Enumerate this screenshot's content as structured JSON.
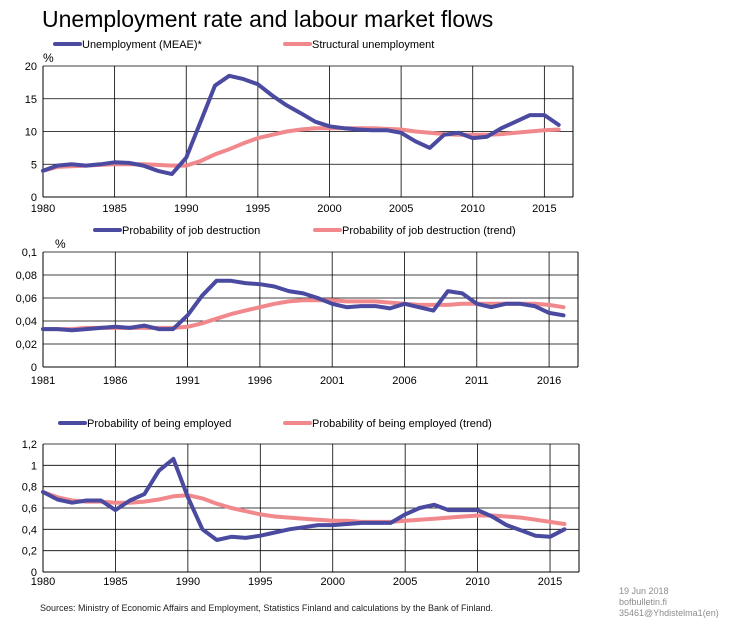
{
  "title": "Unemployment rate and labour market flows",
  "chart_data": [
    {
      "type": "line",
      "title": "",
      "ylabel": "%",
      "xlabel": "",
      "xlim": [
        1980,
        2017
      ],
      "ylim": [
        0,
        20
      ],
      "xticks": [
        "1980",
        "1985",
        "1990",
        "1995",
        "2000",
        "2005",
        "2010",
        "2015"
      ],
      "xtick_values": [
        1980,
        1985,
        1990,
        1995,
        2000,
        2005,
        2010,
        2015
      ],
      "yticks": [
        "0",
        "5",
        "10",
        "15",
        "20"
      ],
      "ytick_values": [
        0,
        5,
        10,
        15,
        20
      ],
      "grid": true,
      "legend_position": "top",
      "series": [
        {
          "name": "Unemployment (MEAE)*",
          "color": "#4a4aa0",
          "x": [
            1980,
            1981,
            1982,
            1983,
            1984,
            1985,
            1986,
            1987,
            1988,
            1989,
            1990,
            1991,
            1992,
            1993,
            1994,
            1995,
            1996,
            1997,
            1998,
            1999,
            2000,
            2001,
            2002,
            2003,
            2004,
            2005,
            2006,
            2007,
            2008,
            2009,
            2010,
            2011,
            2012,
            2013,
            2014,
            2015,
            2016
          ],
          "y": [
            4.0,
            4.8,
            5.0,
            4.8,
            5.0,
            5.3,
            5.2,
            4.8,
            4.0,
            3.5,
            6.0,
            11.5,
            17.0,
            18.5,
            18.0,
            17.2,
            15.5,
            14.0,
            12.8,
            11.5,
            10.8,
            10.5,
            10.3,
            10.2,
            10.2,
            9.8,
            8.5,
            7.5,
            9.5,
            9.8,
            9.0,
            9.2,
            10.5,
            11.5,
            12.5,
            12.5,
            11.0
          ]
        },
        {
          "name": "Structural unemployment",
          "color": "#f0888c",
          "x": [
            1980,
            1981,
            1982,
            1983,
            1984,
            1985,
            1986,
            1987,
            1988,
            1989,
            1990,
            1991,
            1992,
            1993,
            1994,
            1995,
            1996,
            1997,
            1998,
            1999,
            2000,
            2001,
            2002,
            2003,
            2004,
            2005,
            2006,
            2007,
            2008,
            2009,
            2010,
            2011,
            2012,
            2013,
            2014,
            2015,
            2016
          ],
          "y": [
            4.0,
            4.6,
            4.7,
            4.8,
            4.9,
            5.0,
            5.0,
            5.0,
            4.9,
            4.8,
            4.8,
            5.5,
            6.5,
            7.3,
            8.2,
            9.0,
            9.5,
            10.0,
            10.3,
            10.5,
            10.5,
            10.5,
            10.5,
            10.5,
            10.4,
            10.3,
            10.0,
            9.8,
            9.6,
            9.5,
            9.5,
            9.5,
            9.6,
            9.8,
            10.0,
            10.2,
            10.3
          ]
        }
      ]
    },
    {
      "type": "line",
      "title": "",
      "ylabel": "%",
      "xlabel": "",
      "xlim": [
        1981,
        2018
      ],
      "ylim": [
        0,
        0.1
      ],
      "xticks": [
        "1981",
        "1986",
        "1991",
        "1996",
        "2001",
        "2006",
        "2011",
        "2016"
      ],
      "xtick_values": [
        1981,
        1986,
        1991,
        1996,
        2001,
        2006,
        2011,
        2016
      ],
      "yticks": [
        "0",
        "0,02",
        "0,04",
        "0,06",
        "0,08",
        "0,1"
      ],
      "ytick_values": [
        0,
        0.02,
        0.04,
        0.06,
        0.08,
        0.1
      ],
      "grid": true,
      "legend_position": "top",
      "series": [
        {
          "name": "Probability of job destruction",
          "color": "#4a4aa0",
          "x": [
            1981,
            1982,
            1983,
            1984,
            1985,
            1986,
            1987,
            1988,
            1989,
            1990,
            1991,
            1992,
            1993,
            1994,
            1995,
            1996,
            1997,
            1998,
            1999,
            2000,
            2001,
            2002,
            2003,
            2004,
            2005,
            2006,
            2007,
            2008,
            2009,
            2010,
            2011,
            2012,
            2013,
            2014,
            2015,
            2016,
            2017
          ],
          "y": [
            0.033,
            0.033,
            0.032,
            0.033,
            0.034,
            0.035,
            0.034,
            0.036,
            0.033,
            0.033,
            0.045,
            0.062,
            0.075,
            0.075,
            0.073,
            0.072,
            0.07,
            0.066,
            0.064,
            0.06,
            0.055,
            0.052,
            0.053,
            0.053,
            0.051,
            0.055,
            0.052,
            0.049,
            0.066,
            0.064,
            0.055,
            0.052,
            0.055,
            0.055,
            0.053,
            0.047,
            0.045
          ]
        },
        {
          "name": "Probability of job destruction (trend)",
          "color": "#f0888c",
          "x": [
            1981,
            1982,
            1983,
            1984,
            1985,
            1986,
            1987,
            1988,
            1989,
            1990,
            1991,
            1992,
            1993,
            1994,
            1995,
            1996,
            1997,
            1998,
            1999,
            2000,
            2001,
            2002,
            2003,
            2004,
            2005,
            2006,
            2007,
            2008,
            2009,
            2010,
            2011,
            2012,
            2013,
            2014,
            2015,
            2016,
            2017
          ],
          "y": [
            0.033,
            0.033,
            0.033,
            0.034,
            0.034,
            0.034,
            0.034,
            0.034,
            0.034,
            0.034,
            0.035,
            0.038,
            0.042,
            0.046,
            0.049,
            0.052,
            0.055,
            0.057,
            0.058,
            0.058,
            0.058,
            0.057,
            0.057,
            0.057,
            0.056,
            0.055,
            0.054,
            0.054,
            0.054,
            0.055,
            0.055,
            0.055,
            0.055,
            0.055,
            0.055,
            0.054,
            0.052
          ]
        }
      ]
    },
    {
      "type": "line",
      "title": "",
      "ylabel": "",
      "xlabel": "",
      "xlim": [
        1980,
        2017
      ],
      "ylim": [
        0,
        1.2
      ],
      "xticks": [
        "1980",
        "1985",
        "1990",
        "1995",
        "2000",
        "2005",
        "2010",
        "2015"
      ],
      "xtick_values": [
        1980,
        1985,
        1990,
        1995,
        2000,
        2005,
        2010,
        2015
      ],
      "yticks": [
        "0",
        "0,2",
        "0,4",
        "0,6",
        "0,8",
        "1",
        "1,2"
      ],
      "ytick_values": [
        0,
        0.2,
        0.4,
        0.6,
        0.8,
        1.0,
        1.2
      ],
      "grid": true,
      "legend_position": "top",
      "series": [
        {
          "name": "Probability of being employed",
          "color": "#4a4aa0",
          "x": [
            1980,
            1981,
            1982,
            1983,
            1984,
            1985,
            1986,
            1987,
            1988,
            1989,
            1990,
            1991,
            1992,
            1993,
            1994,
            1995,
            1996,
            1997,
            1998,
            1999,
            2000,
            2001,
            2002,
            2003,
            2004,
            2005,
            2006,
            2007,
            2008,
            2009,
            2010,
            2011,
            2012,
            2013,
            2014,
            2015,
            2016
          ],
          "y": [
            0.75,
            0.68,
            0.65,
            0.67,
            0.67,
            0.58,
            0.67,
            0.73,
            0.95,
            1.06,
            0.7,
            0.4,
            0.3,
            0.33,
            0.32,
            0.34,
            0.37,
            0.4,
            0.42,
            0.44,
            0.44,
            0.45,
            0.46,
            0.46,
            0.46,
            0.54,
            0.6,
            0.63,
            0.58,
            0.58,
            0.58,
            0.52,
            0.44,
            0.39,
            0.34,
            0.33,
            0.4
          ]
        },
        {
          "name": "Probability of being employed (trend)",
          "color": "#f0888c",
          "x": [
            1980,
            1981,
            1982,
            1983,
            1984,
            1985,
            1986,
            1987,
            1988,
            1989,
            1990,
            1991,
            1992,
            1993,
            1994,
            1995,
            1996,
            1997,
            1998,
            1999,
            2000,
            2001,
            2002,
            2003,
            2004,
            2005,
            2006,
            2007,
            2008,
            2009,
            2010,
            2011,
            2012,
            2013,
            2014,
            2015,
            2016
          ],
          "y": [
            0.75,
            0.7,
            0.67,
            0.66,
            0.66,
            0.65,
            0.65,
            0.66,
            0.68,
            0.71,
            0.72,
            0.69,
            0.64,
            0.6,
            0.57,
            0.54,
            0.52,
            0.51,
            0.5,
            0.49,
            0.48,
            0.48,
            0.47,
            0.47,
            0.47,
            0.48,
            0.49,
            0.5,
            0.51,
            0.52,
            0.53,
            0.53,
            0.52,
            0.51,
            0.49,
            0.47,
            0.45
          ]
        }
      ]
    }
  ],
  "footer": {
    "sources": "Sources: Ministry of Economic Affairs and Employment, Statistics Finland and calculations by the Bank of Finland.",
    "date": "19 Jun 2018",
    "site": "bofbulletin.fi",
    "code": "35461@Yhdistelma1(en)"
  }
}
